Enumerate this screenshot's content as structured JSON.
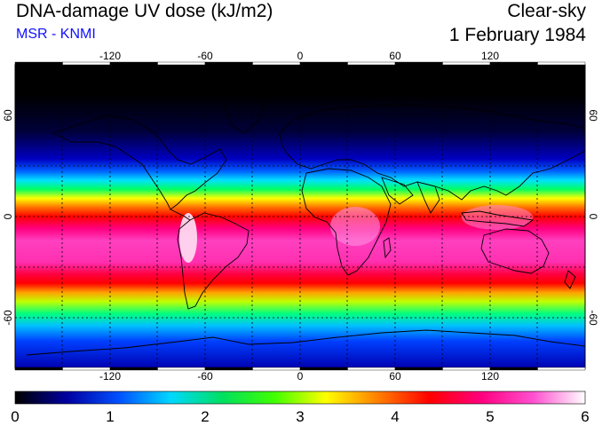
{
  "header": {
    "title": "DNA-damage UV dose (kJ/m2)",
    "subtitle": "MSR - KNMI",
    "sky_condition": "Clear-sky",
    "date": "1 February 1984"
  },
  "axes": {
    "lon_ticks": [
      "-120",
      "-60",
      "0",
      "60",
      "120"
    ],
    "lat_ticks": [
      "60",
      "0",
      "-60"
    ]
  },
  "colorbar": {
    "labels": [
      "0",
      "1",
      "2",
      "3",
      "4",
      "5",
      "6"
    ],
    "stops": [
      "#000000",
      "#0000a0",
      "#0050ff",
      "#00d8ff",
      "#00e060",
      "#40ff00",
      "#ffff00",
      "#ff8000",
      "#ff0000",
      "#ff0080",
      "#ff50d0",
      "#ffffff"
    ]
  },
  "colors": {
    "title_color": "#000000",
    "subtitle_color": "#1010ff"
  }
}
